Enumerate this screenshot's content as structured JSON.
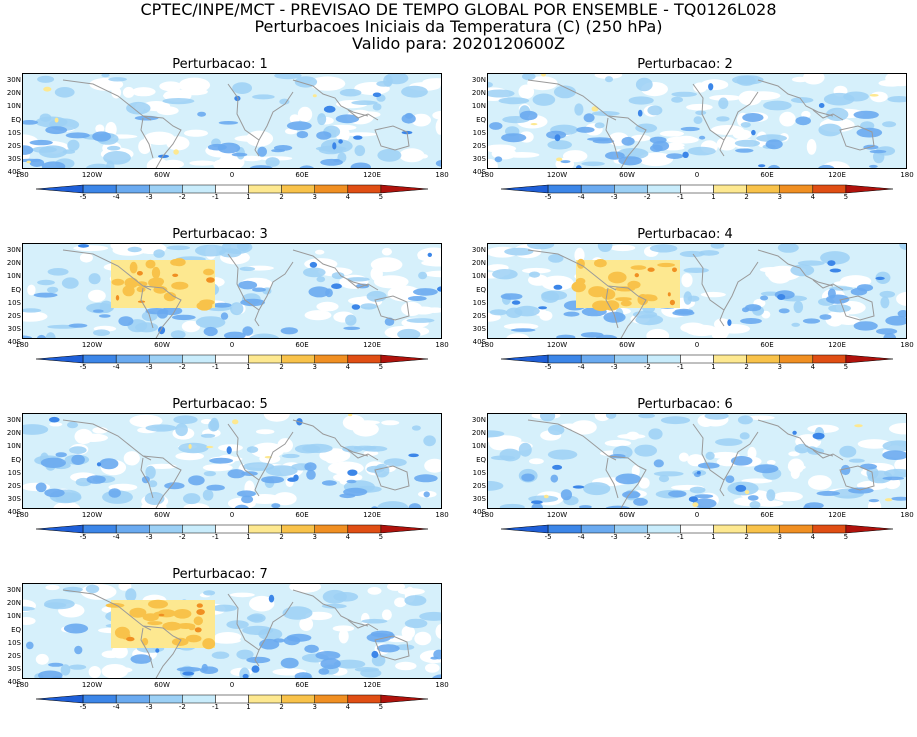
{
  "header": {
    "line1": "CPTEC/INPE/MCT - PREVISAO DE TEMPO GLOBAL POR ENSEMBLE - TQ0126L028",
    "line2": "Perturbacoes Iniciais da Temperatura (C) (250 hPa)",
    "line3": "Valido para: 2020120600Z"
  },
  "lat_labels": [
    "30N",
    "20N",
    "10N",
    "EQ",
    "10S",
    "20S",
    "30S",
    "40S"
  ],
  "lon_labels": [
    "180",
    "120W",
    "60W",
    "0",
    "60E",
    "120E",
    "180"
  ],
  "colorbar": {
    "labels": [
      "-5",
      "-4",
      "-3",
      "-2",
      "-1",
      "1",
      "2",
      "3",
      "4",
      "5"
    ],
    "colors": [
      "#1e5fd8",
      "#3c86e8",
      "#6aaaf0",
      "#9cd0f5",
      "#c9ecfb",
      "#ffffff",
      "#fde890",
      "#f8c24a",
      "#f08f22",
      "#e04e14",
      "#b0120c"
    ]
  },
  "panels": [
    {
      "title": "Perturbacao: 1",
      "warm_box": false
    },
    {
      "title": "Perturbacao: 2",
      "warm_box": false
    },
    {
      "title": "Perturbacao: 3",
      "warm_box": true
    },
    {
      "title": "Perturbacao: 4",
      "warm_box": true
    },
    {
      "title": "Perturbacao: 5",
      "warm_box": false
    },
    {
      "title": "Perturbacao: 6",
      "warm_box": false
    },
    {
      "title": "Perturbacao: 7",
      "warm_box": true
    }
  ]
}
